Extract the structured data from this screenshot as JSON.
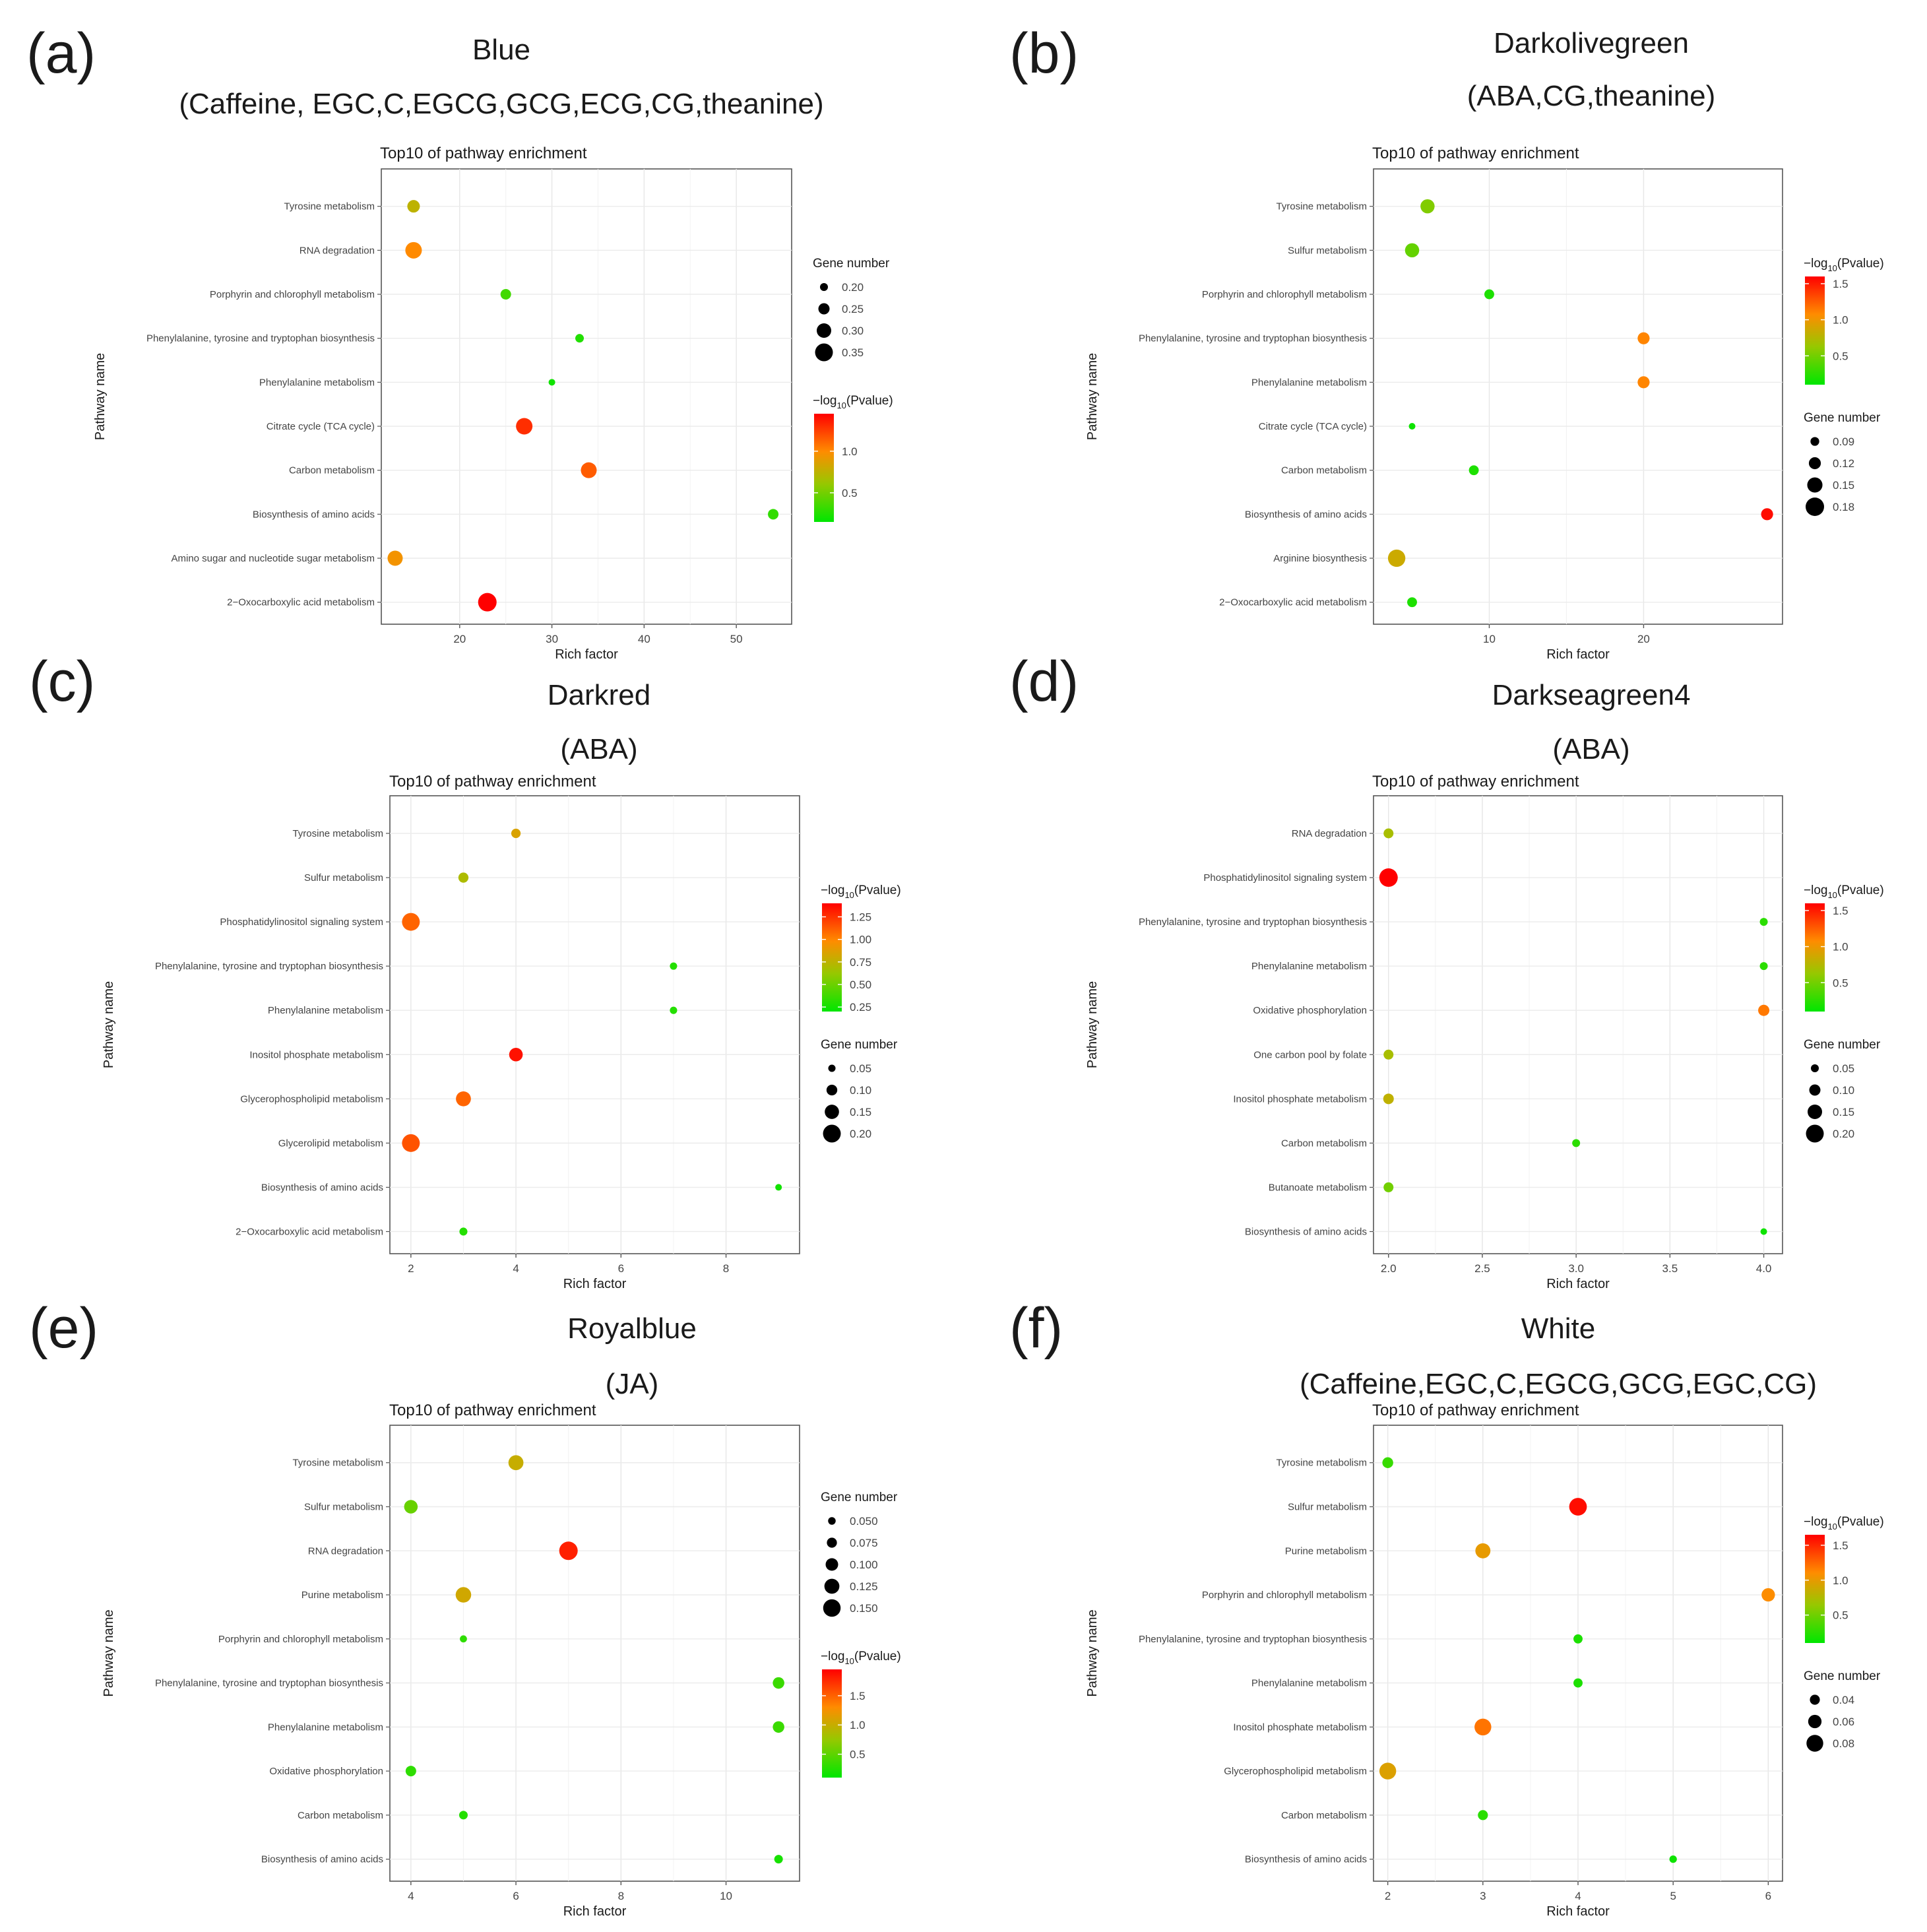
{
  "figure_panels": [
    {
      "letter": "(a)",
      "module": "Blue",
      "traits": "(Caffeine, EGC,C,EGCG,GCG,ECG,CG,theanine)",
      "chart_data": {
        "type": "scatter",
        "title": "Top10 of pathway enrichment",
        "xlabel": "Rich factor",
        "ylabel": "Pathway name",
        "xlim": [
          11.5,
          56
        ],
        "xticks": [
          20,
          30,
          40,
          50
        ],
        "xtick_labels": [
          "20",
          "30",
          "40",
          "50"
        ],
        "categories": [
          "Tyrosine metabolism",
          "RNA degradation",
          "Porphyrin and chlorophyll metabolism",
          "Phenylalanine, tyrosine and tryptophan biosynthesis",
          "Phenylalanine metabolism",
          "Citrate cycle (TCA cycle)",
          "Carbon metabolism",
          "Biosynthesis of amino acids",
          "Amino sugar and nucleotide sugar metabolism",
          "2−Oxocarboxylic acid metabolism"
        ],
        "rich_factor": [
          15,
          15,
          25,
          33,
          30,
          27,
          34,
          54,
          13,
          23
        ],
        "gene_number": [
          0.27,
          0.33,
          0.24,
          0.21,
          0.18,
          0.33,
          0.32,
          0.24,
          0.31,
          0.36
        ],
        "neg_log10_p": [
          0.75,
          1.0,
          0.35,
          0.25,
          0.2,
          1.3,
          1.15,
          0.3,
          0.95,
          1.45
        ],
        "color_range": [
          0.15,
          1.45
        ],
        "size_range": [
          0.18,
          0.36
        ],
        "color_legend": {
          "title_prefix": "−log",
          "title_sub": "10",
          "title_suffix": "(Pvalue)",
          "ticks": [
            0.5,
            1.0
          ],
          "tick_labels": [
            "0.5",
            "1.0"
          ]
        },
        "size_legend": {
          "title": "Gene number",
          "values": [
            0.2,
            0.25,
            0.3,
            0.35
          ],
          "labels": [
            "0.20",
            "0.25",
            "0.30",
            "0.35"
          ]
        },
        "legend_order": [
          "size",
          "color"
        ]
      }
    },
    {
      "letter": "(b)",
      "module": "Darkolivegreen",
      "traits": "(ABA,CG,theanine)",
      "chart_data": {
        "type": "scatter",
        "title": "Top10 of pathway enrichment",
        "xlabel": "Rich factor",
        "ylabel": "Pathway name",
        "xlim": [
          2.5,
          29
        ],
        "xticks": [
          10,
          20
        ],
        "xtick_labels": [
          "10",
          "20"
        ],
        "categories": [
          "Tyrosine metabolism",
          "Sulfur metabolism",
          "Porphyrin and chlorophyll metabolism",
          "Phenylalanine, tyrosine and tryptophan biosynthesis",
          "Phenylalanine metabolism",
          "Citrate cycle (TCA cycle)",
          "Carbon metabolism",
          "Biosynthesis of amino acids",
          "Arginine biosynthesis",
          "2−Oxocarboxylic acid metabolism"
        ],
        "rich_factor": [
          6,
          5,
          10,
          20,
          20,
          5,
          9,
          28,
          4,
          5
        ],
        "gene_number": [
          0.14,
          0.14,
          0.1,
          0.12,
          0.12,
          0.07,
          0.1,
          0.12,
          0.17,
          0.1
        ],
        "neg_log10_p": [
          0.55,
          0.45,
          0.2,
          1.1,
          1.1,
          0.15,
          0.2,
          1.55,
          0.85,
          0.2
        ],
        "color_range": [
          0.1,
          1.6
        ],
        "size_range": [
          0.07,
          0.18
        ],
        "color_legend": {
          "title_prefix": "−log",
          "title_sub": "10",
          "title_suffix": "(Pvalue)",
          "ticks": [
            0.5,
            1.0,
            1.5
          ],
          "tick_labels": [
            "0.5",
            "1.0",
            "1.5"
          ]
        },
        "size_legend": {
          "title": "Gene number",
          "values": [
            0.09,
            0.12,
            0.15,
            0.18
          ],
          "labels": [
            "0.09",
            "0.12",
            "0.15",
            "0.18"
          ]
        },
        "legend_order": [
          "color",
          "size"
        ]
      }
    },
    {
      "letter": "(c)",
      "module": "Darkred",
      "traits": "(ABA)",
      "chart_data": {
        "type": "scatter",
        "title": "Top10 of pathway enrichment",
        "xlabel": "Rich factor",
        "ylabel": "Pathway name",
        "xlim": [
          1.6,
          9.4
        ],
        "xticks": [
          2,
          4,
          6,
          8
        ],
        "xtick_labels": [
          "2",
          "4",
          "6",
          "8"
        ],
        "categories": [
          "Tyrosine metabolism",
          "Sulfur metabolism",
          "Phosphatidylinositol signaling system",
          "Phenylalanine, tyrosine and tryptophan biosynthesis",
          "Phenylalanine metabolism",
          "Inositol phosphate metabolism",
          "Glycerophospholipid metabolism",
          "Glycerolipid metabolism",
          "Biosynthesis of amino acids",
          "2−Oxocarboxylic acid metabolism"
        ],
        "rich_factor": [
          4,
          3,
          2,
          7,
          7,
          4,
          3,
          2,
          9,
          3
        ],
        "gene_number": [
          0.08,
          0.09,
          0.2,
          0.05,
          0.05,
          0.14,
          0.16,
          0.2,
          0.04,
          0.06
        ],
        "neg_log10_p": [
          0.85,
          0.7,
          1.1,
          0.3,
          0.3,
          1.35,
          1.1,
          1.15,
          0.25,
          0.3
        ],
        "color_range": [
          0.2,
          1.4
        ],
        "size_range": [
          0.04,
          0.21
        ],
        "color_legend": {
          "title_prefix": "−log",
          "title_sub": "10",
          "title_suffix": "(Pvalue)",
          "ticks": [
            0.25,
            0.5,
            0.75,
            1.0,
            1.25
          ],
          "tick_labels": [
            "0.25",
            "0.50",
            "0.75",
            "1.00",
            "1.25"
          ]
        },
        "size_legend": {
          "title": "Gene number",
          "values": [
            0.05,
            0.1,
            0.15,
            0.2
          ],
          "labels": [
            "0.05",
            "0.10",
            "0.15",
            "0.20"
          ]
        },
        "legend_order": [
          "color",
          "size"
        ]
      }
    },
    {
      "letter": "(d)",
      "module": "Darkseagreen4",
      "traits": "(ABA)",
      "chart_data": {
        "type": "scatter",
        "title": "Top10 of pathway enrichment",
        "xlabel": "Rich factor",
        "ylabel": "Pathway name",
        "xlim": [
          1.92,
          4.1
        ],
        "xticks": [
          2.0,
          2.5,
          3.0,
          3.5,
          4.0
        ],
        "xtick_labels": [
          "2.0",
          "2.5",
          "3.0",
          "3.5",
          "4.0"
        ],
        "categories": [
          "RNA degradation",
          "Phosphatidylinositol signaling system",
          "Phenylalanine, tyrosine and tryptophan biosynthesis",
          "Phenylalanine metabolism",
          "Oxidative phosphorylation",
          "One carbon pool by folate",
          "Inositol phosphate metabolism",
          "Carbon metabolism",
          "Butanoate metabolism",
          "Biosynthesis of amino acids"
        ],
        "rich_factor": [
          2,
          2,
          4,
          4,
          4,
          2,
          2,
          3,
          2,
          4
        ],
        "gene_number": [
          0.08,
          0.21,
          0.05,
          0.05,
          0.1,
          0.08,
          0.09,
          0.05,
          0.08,
          0.03
        ],
        "neg_log10_p": [
          0.7,
          1.6,
          0.25,
          0.25,
          1.15,
          0.7,
          0.8,
          0.25,
          0.5,
          0.15
        ],
        "color_range": [
          0.1,
          1.6
        ],
        "size_range": [
          0.03,
          0.21
        ],
        "color_legend": {
          "title_prefix": "−log",
          "title_sub": "10",
          "title_suffix": "(Pvalue)",
          "ticks": [
            0.5,
            1.0,
            1.5
          ],
          "tick_labels": [
            "0.5",
            "1.0",
            "1.5"
          ]
        },
        "size_legend": {
          "title": "Gene number",
          "values": [
            0.05,
            0.1,
            0.15,
            0.2
          ],
          "labels": [
            "0.05",
            "0.10",
            "0.15",
            "0.20"
          ]
        },
        "legend_order": [
          "color",
          "size"
        ]
      }
    },
    {
      "letter": "(e)",
      "module": "Royalblue",
      "traits": "(JA)",
      "chart_data": {
        "type": "scatter",
        "title": "Top10 of pathway enrichment",
        "xlabel": "Rich factor",
        "ylabel": "Pathway name",
        "xlim": [
          3.6,
          11.4
        ],
        "xticks": [
          4,
          6,
          8,
          10
        ],
        "xtick_labels": [
          "4",
          "6",
          "8",
          "10"
        ],
        "categories": [
          "Tyrosine metabolism",
          "Sulfur metabolism",
          "RNA degradation",
          "Purine metabolism",
          "Porphyrin and chlorophyll metabolism",
          "Phenylalanine, tyrosine and tryptophan biosynthesis",
          "Phenylalanine metabolism",
          "Oxidative phosphorylation",
          "Carbon metabolism",
          "Biosynthesis of amino acids"
        ],
        "rich_factor": [
          6,
          4,
          7,
          5,
          5,
          11,
          11,
          4,
          5,
          11
        ],
        "gene_number": [
          0.125,
          0.11,
          0.16,
          0.13,
          0.045,
          0.09,
          0.09,
          0.08,
          0.06,
          0.06
        ],
        "neg_log10_p": [
          1.0,
          0.55,
          1.8,
          1.05,
          0.3,
          0.35,
          0.35,
          0.3,
          0.25,
          0.2
        ],
        "color_range": [
          0.1,
          1.95
        ],
        "size_range": [
          0.04,
          0.16
        ],
        "color_legend": {
          "title_prefix": "−log",
          "title_sub": "10",
          "title_suffix": "(Pvalue)",
          "ticks": [
            0.5,
            1.0,
            1.5
          ],
          "tick_labels": [
            "0.5",
            "1.0",
            "1.5"
          ]
        },
        "size_legend": {
          "title": "Gene number",
          "values": [
            0.05,
            0.075,
            0.1,
            0.125,
            0.15
          ],
          "labels": [
            "0.050",
            "0.075",
            "0.100",
            "0.125",
            "0.150"
          ]
        },
        "legend_order": [
          "size",
          "color"
        ]
      }
    },
    {
      "letter": "(f)",
      "module": "White",
      "traits": "(Caffeine,EGC,C,EGCG,GCG,EGC,CG)",
      "chart_data": {
        "type": "scatter",
        "title": "Top10 of pathway enrichment",
        "xlabel": "Rich factor",
        "ylabel": "Pathway name",
        "xlim": [
          1.85,
          6.15
        ],
        "xticks": [
          2,
          3,
          4,
          5,
          6
        ],
        "xtick_labels": [
          "2",
          "3",
          "4",
          "5",
          "6"
        ],
        "categories": [
          "Tyrosine metabolism",
          "Sulfur metabolism",
          "Purine metabolism",
          "Porphyrin and chlorophyll metabolism",
          "Phenylalanine, tyrosine and tryptophan biosynthesis",
          "Phenylalanine metabolism",
          "Inositol phosphate metabolism",
          "Glycerophospholipid metabolism",
          "Carbon metabolism",
          "Biosynthesis of amino acids"
        ],
        "rich_factor": [
          2,
          4,
          3,
          6,
          4,
          4,
          3,
          2,
          3,
          5
        ],
        "gene_number": [
          0.045,
          0.085,
          0.07,
          0.06,
          0.035,
          0.035,
          0.08,
          0.08,
          0.04,
          0.025
        ],
        "neg_log10_p": [
          0.3,
          1.6,
          1.0,
          1.1,
          0.2,
          0.2,
          1.2,
          0.95,
          0.25,
          0.15
        ],
        "color_range": [
          0.1,
          1.65
        ],
        "size_range": [
          0.02,
          0.09
        ],
        "color_legend": {
          "title_prefix": "−log",
          "title_sub": "10",
          "title_suffix": "(Pvalue)",
          "ticks": [
            0.5,
            1.0,
            1.5
          ],
          "tick_labels": [
            "0.5",
            "1.0",
            "1.5"
          ]
        },
        "size_legend": {
          "title": "Gene number",
          "values": [
            0.04,
            0.06,
            0.08
          ],
          "labels": [
            "0.04",
            "0.06",
            "0.08"
          ]
        },
        "legend_order": [
          "color",
          "size"
        ]
      }
    }
  ]
}
